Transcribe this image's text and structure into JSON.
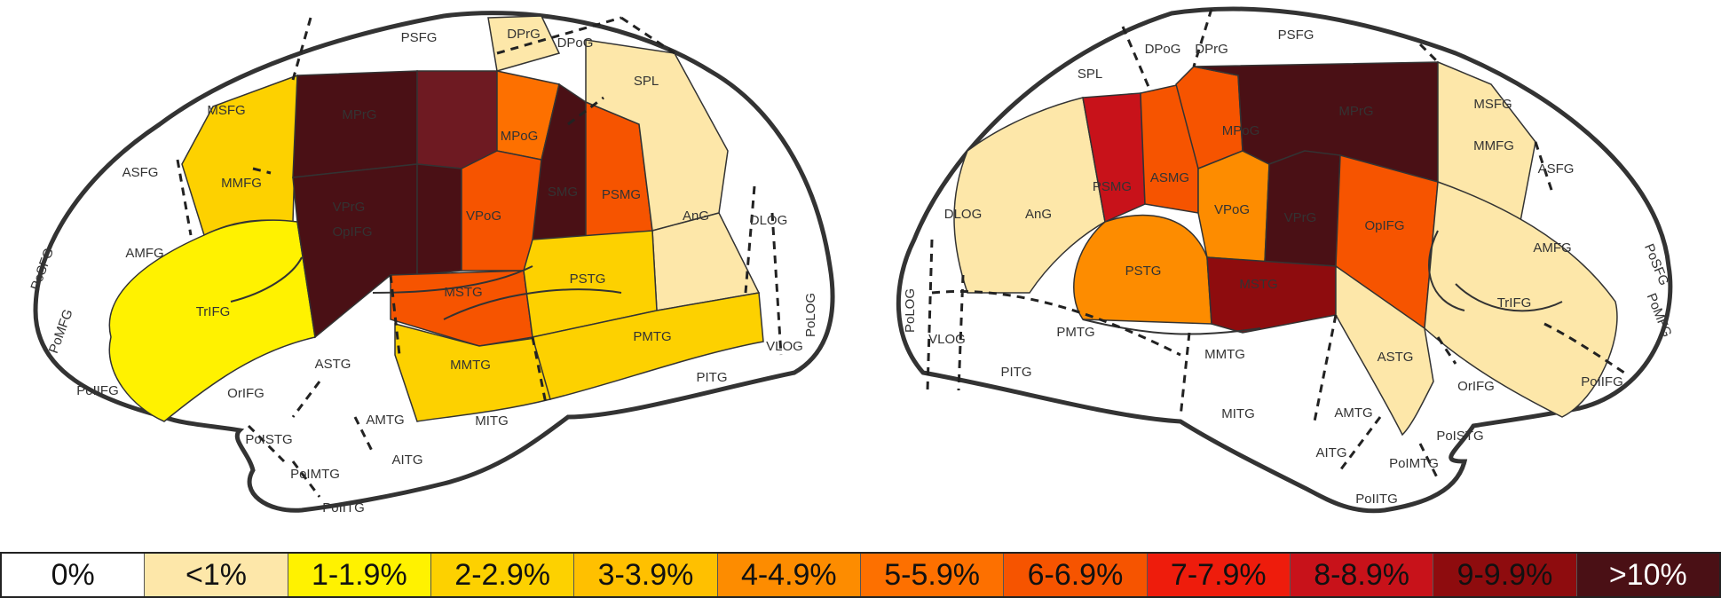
{
  "colors": {
    "c0": "#ffffff",
    "c1": "#fde7a9",
    "c2": "#fff200",
    "c3": "#fdd100",
    "c4": "#ffc000",
    "c5": "#fd8c00",
    "c6": "#fd7000",
    "c7": "#f65400",
    "c8": "#ee1c0c",
    "c9": "#c8121a",
    "c10": "#8e0c0e",
    "c11": "#4a1015",
    "c_mpre": "#6e1a22"
  },
  "legend": [
    {
      "label": "0%",
      "color": "#ffffff"
    },
    {
      "label": "<1%",
      "color": "#fde7a9"
    },
    {
      "label": "1-1.9%",
      "color": "#fff200"
    },
    {
      "label": "2-2.9%",
      "color": "#fdd100"
    },
    {
      "label": "3-3.9%",
      "color": "#ffc000"
    },
    {
      "label": "4-4.9%",
      "color": "#fd8c00"
    },
    {
      "label": "5-5.9%",
      "color": "#fd7000"
    },
    {
      "label": "6-6.9%",
      "color": "#f65400"
    },
    {
      "label": "7-7.9%",
      "color": "#ee1c0c"
    },
    {
      "label": "8-8.9%",
      "color": "#c8121a"
    },
    {
      "label": "9-9.9%",
      "color": "#8e0c0e"
    },
    {
      "label": ">10%",
      "color": "#4a1015"
    }
  ],
  "left_hemisphere": {
    "labels": [
      "PSFG",
      "DPrG",
      "DPoG",
      "MSFG",
      "SPL",
      "ASFG",
      "MMFG",
      "MPrG",
      "MPoG",
      "SMG",
      "PSMG",
      "AnG",
      "DLOG",
      "AMFG",
      "PoSFG",
      "VPrG",
      "VPoG",
      "PoMFG",
      "TrIFG",
      "OpIFG",
      "MSTG",
      "PSTG",
      "PMTG",
      "PoLOG",
      "VLOG",
      "OrIFG",
      "ASTG",
      "MMTG",
      "PITG",
      "PoIIFG",
      "AMTG",
      "MITG",
      "PoISTG",
      "AITG",
      "PoIMTG",
      "PoIITG"
    ]
  },
  "right_hemisphere": {
    "labels": [
      "DPoG",
      "DPrG",
      "PSFG",
      "SPL",
      "MSFG",
      "MPoG",
      "MPrG",
      "PSMG",
      "ASMG",
      "MMFG",
      "ASFG",
      "DLOG",
      "AnG",
      "VPoG",
      "VPrG",
      "OpIFG",
      "AMFG",
      "PoSFG",
      "PoLOG",
      "PSTG",
      "MSTG",
      "TrIFG",
      "VLOG",
      "PMTG",
      "PoMFG",
      "ASTG",
      "PITG",
      "MMTG",
      "OrIFG",
      "PoIIFG",
      "MITG",
      "AMTG",
      "PoISTG",
      "AITG",
      "PoIMTG",
      "PoIITG"
    ]
  }
}
